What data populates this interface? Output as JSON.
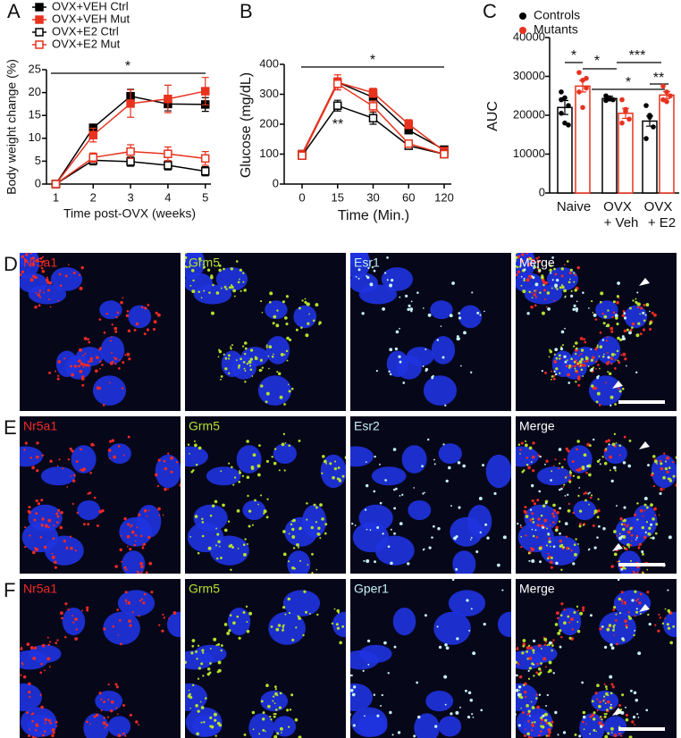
{
  "chart_data": [
    {
      "panel": "A",
      "type": "line",
      "x": [
        1,
        2,
        3,
        4,
        5
      ],
      "xlim": [
        0.75,
        5.15
      ],
      "xticks": [
        1,
        2,
        3,
        4,
        5
      ],
      "ylim": [
        0,
        25
      ],
      "yticks": [
        0,
        5,
        10,
        15,
        20,
        25
      ],
      "xlabel": "Time post-OVX (weeks)",
      "ylabel": "Body weight change (%)",
      "annotations": [
        "*"
      ],
      "series": [
        {
          "name": "OVX+VEH Ctrl",
          "color": "#000000",
          "filled": true,
          "values": [
            0,
            12.3,
            19.2,
            17.5,
            17.4
          ],
          "errors": [
            0.2,
            0.5,
            1.5,
            1.5,
            1.5
          ]
        },
        {
          "name": "OVX+VEH Mut",
          "color": "#e8321e",
          "filled": true,
          "values": [
            0,
            10.7,
            17.6,
            18.6,
            20.3
          ],
          "errors": [
            0.2,
            1.5,
            3,
            3,
            3
          ]
        },
        {
          "name": "OVX+E2 Ctrl",
          "color": "#000000",
          "filled": false,
          "values": [
            0,
            5.2,
            4.9,
            4.1,
            2.8
          ],
          "errors": [
            0.2,
            1,
            1,
            1,
            1
          ]
        },
        {
          "name": "OVX+E2 Mut",
          "color": "#e8321e",
          "filled": false,
          "values": [
            0,
            5.8,
            7.1,
            6.6,
            5.6
          ],
          "errors": [
            0.2,
            1,
            1.5,
            1.5,
            1.5
          ]
        }
      ]
    },
    {
      "panel": "B",
      "type": "line",
      "categories": [
        "0",
        "15",
        "30",
        "60",
        "120"
      ],
      "ylim": [
        0,
        400
      ],
      "yticks": [
        0,
        100,
        200,
        300,
        400
      ],
      "xlabel": "Time (Min.)",
      "ylabel": "Glucose (mg/dL)",
      "annotations": [
        "*",
        "**"
      ],
      "series": [
        {
          "color": "#000000",
          "filled": true,
          "values": [
            100,
            340,
            290,
            180,
            115
          ],
          "errors": [
            5,
            15,
            12,
            10,
            8
          ]
        },
        {
          "color": "#e8321e",
          "filled": true,
          "values": [
            100,
            340,
            305,
            200,
            110
          ],
          "errors": [
            5,
            25,
            15,
            15,
            8
          ]
        },
        {
          "color": "#000000",
          "filled": false,
          "values": [
            95,
            262,
            220,
            128,
            100
          ],
          "errors": [
            5,
            18,
            20,
            8,
            5
          ]
        },
        {
          "color": "#e8321e",
          "filled": false,
          "values": [
            95,
            335,
            260,
            135,
            100
          ],
          "errors": [
            5,
            20,
            18,
            10,
            5
          ]
        }
      ]
    },
    {
      "panel": "C",
      "type": "bar",
      "categories": [
        [
          "Naive"
        ],
        [
          "OVX",
          "+ Veh"
        ],
        [
          "OVX",
          "+ E2"
        ]
      ],
      "ylim": [
        0,
        40000
      ],
      "yticks": [
        0,
        10000,
        20000,
        30000,
        40000
      ],
      "ylabel": "AUC",
      "annotations": [
        "*",
        "*",
        "***",
        "*",
        "**"
      ],
      "series": [
        {
          "name": "Controls",
          "color": "#000000",
          "values": [
            22000,
            24300,
            18500
          ],
          "errors": [
            1800,
            600,
            1300
          ],
          "points": [
            [
              26000,
              24500,
              22500,
              20500,
              18000,
              17500,
              24000
            ],
            [
              25000,
              24500,
              24000,
              23800,
              24200
            ],
            [
              22500,
              19500,
              17000,
              14000,
              20000
            ]
          ]
        },
        {
          "name": "Mutants",
          "color": "#e8321e",
          "values": [
            27500,
            20500,
            25200
          ],
          "errors": [
            1500,
            1300,
            900
          ],
          "points": [
            [
              31000,
              29000,
              27000,
              26000,
              22000,
              29500
            ],
            [
              24000,
              21000,
              19000,
              18000,
              21500
            ],
            [
              27500,
              26000,
              25000,
              24000,
              23500
            ]
          ]
        }
      ]
    }
  ],
  "image_rows": [
    {
      "panel": "D",
      "channels": [
        "Nr5a1",
        "Grm5",
        "Esr1",
        "Merge"
      ]
    },
    {
      "panel": "E",
      "channels": [
        "Nr5a1",
        "Grm5",
        "Esr2",
        "Merge"
      ]
    },
    {
      "panel": "F",
      "channels": [
        "Nr5a1",
        "Grm5",
        "Gper1",
        "Merge"
      ]
    }
  ]
}
